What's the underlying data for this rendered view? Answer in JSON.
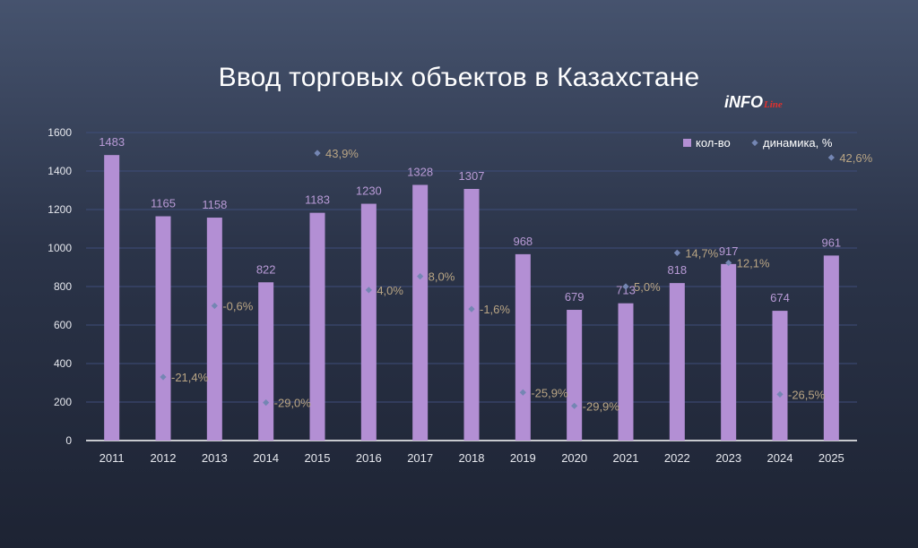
{
  "title": "Ввод торговых объектов в Казахстане",
  "logo": {
    "main": "iNFO",
    "sub": "Line"
  },
  "colors": {
    "bar": "#b38fd4",
    "bar_label": "#b89ad6",
    "marker": "#7486b3",
    "dyn_label": "#b9a584",
    "grid": "#3f4d7a",
    "axis_text": "#e6e8ee"
  },
  "chart_data": {
    "type": "bar",
    "title": "Ввод торговых объектов в Казахстане",
    "categories": [
      "2011",
      "2012",
      "2013",
      "2014",
      "2015",
      "2016",
      "2017",
      "2018",
      "2019",
      "2020",
      "2021",
      "2022",
      "2023",
      "2024",
      "2025"
    ],
    "ylim": [
      0,
      1600
    ],
    "yticks": [
      0,
      200,
      400,
      600,
      800,
      1000,
      1200,
      1400,
      1600
    ],
    "grid": true,
    "legend_position": "top-right",
    "series": [
      {
        "name": "кол-во",
        "type": "bar",
        "values": [
          1483,
          1165,
          1158,
          822,
          1183,
          1230,
          1328,
          1307,
          968,
          679,
          713,
          818,
          917,
          674,
          961
        ],
        "labels": [
          "1483",
          "1165",
          "1158",
          "822",
          "1183",
          "1230",
          "1328",
          "1307",
          "968",
          "679",
          "713",
          "818",
          "917",
          "674",
          "961"
        ]
      },
      {
        "name": "динамика, %",
        "type": "scatter",
        "values": [
          null,
          -21.4,
          -0.6,
          -29.0,
          43.9,
          4.0,
          8.0,
          -1.6,
          -25.9,
          -29.9,
          5.0,
          14.7,
          12.1,
          -26.5,
          42.6
        ],
        "marker_y": [
          null,
          330,
          700,
          197,
          1493,
          782,
          853,
          683,
          250,
          180,
          800,
          975,
          923,
          240,
          1470
        ],
        "labels": [
          null,
          "-21,4%",
          "-0,6%",
          "-29,0%",
          "43,9%",
          "4,0%",
          "8,0%",
          "-1,6%",
          "-25,9%",
          "-29,9%",
          "5,0%",
          "14,7%",
          "12,1%",
          "-26,5%",
          "42,6%"
        ]
      }
    ]
  }
}
